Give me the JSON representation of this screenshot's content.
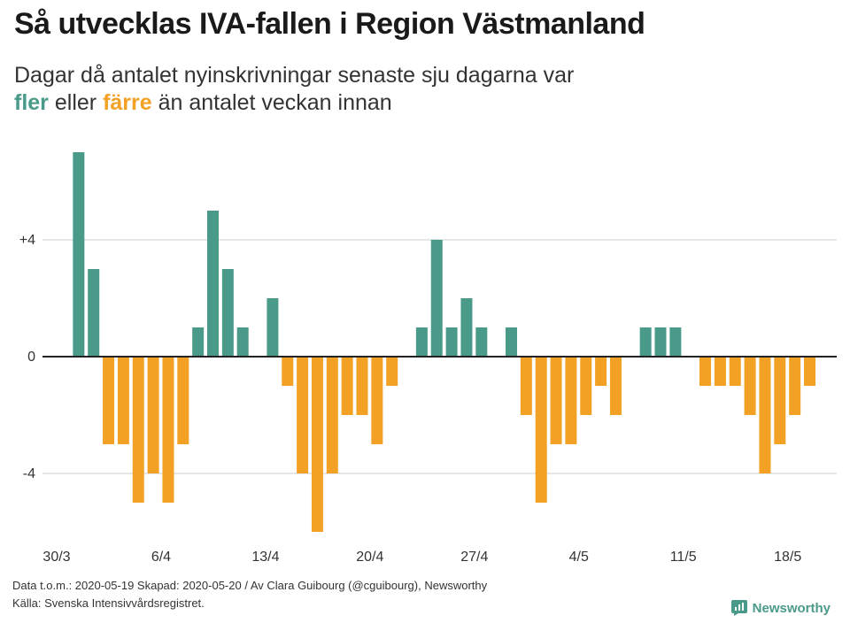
{
  "header": {
    "title": "Så utvecklas IVA-fallen i Region Västmanland",
    "subtitle_line1": "Dagar då antalet nyinskrivningar senaste sju dagarna var",
    "subtitle_more": "fler",
    "subtitle_or": "eller",
    "subtitle_fewer": "färre",
    "subtitle_tail": "än antalet veckan innan"
  },
  "colors": {
    "more": "#4a9a8a",
    "fewer": "#f2a125",
    "grid": "#dddddd",
    "zero": "#222222"
  },
  "chart_data": {
    "type": "bar",
    "title": "Så utvecklas IVA-fallen i Region Västmanland",
    "ylabel": "",
    "xlabel": "",
    "ylim": [
      -6,
      7
    ],
    "yticks": [
      4,
      0,
      -4
    ],
    "ytick_labels": [
      "+4",
      "0",
      "-4"
    ],
    "grid": true,
    "xtick_labels": [
      "30/3",
      "6/4",
      "13/4",
      "20/4",
      "27/4",
      "4/5",
      "11/5",
      "18/5"
    ],
    "xtick_positions": [
      0,
      7,
      14,
      21,
      28,
      35,
      42,
      49
    ],
    "values": [
      0,
      7,
      3,
      -3,
      -3,
      -5,
      -4,
      -5,
      -3,
      1,
      5,
      3,
      1,
      0,
      2,
      -1,
      -4,
      -6,
      -4,
      -2,
      -2,
      -3,
      -1,
      0,
      1,
      4,
      1,
      2,
      1,
      0,
      1,
      -2,
      -5,
      -3,
      -3,
      -2,
      -1,
      -2,
      0,
      1,
      1,
      1,
      0,
      -1,
      -1,
      -1,
      -2,
      -4,
      -3,
      -2,
      -1
    ]
  },
  "footer": {
    "line1": "Data t.o.m.: 2020-05-19 Skapad: 2020-05-20 / Av Clara Guibourg (@cguibourg), Newsworthy",
    "line2": "Källa: Svenska Intensivvårdsregistret."
  },
  "brand": {
    "name": "Newsworthy",
    "icon": "newsworthy-logo-icon"
  }
}
